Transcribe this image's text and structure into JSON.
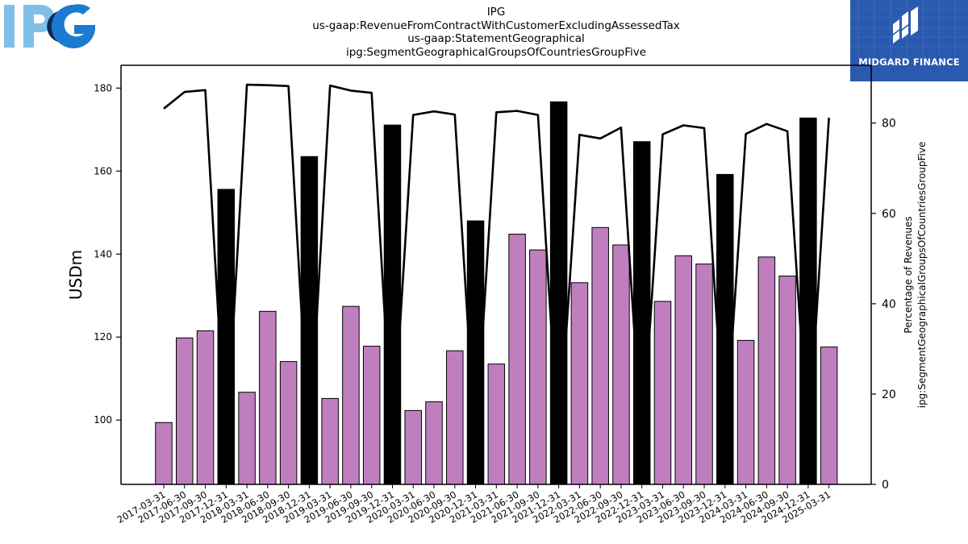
{
  "logos": {
    "left": {
      "name": "IPG",
      "colors": {
        "light": "#7fbfea",
        "dark": "#1a7bd0",
        "navy": "#0b2a55"
      }
    },
    "right": {
      "brand": "MIDGARD FINANCE",
      "background": "#2a5ab0"
    }
  },
  "header": {
    "title": "IPG",
    "line2": "us-gaap:RevenueFromContractWithCustomerExcludingAssessedTax",
    "line3": "us-gaap:StatementGeographical",
    "line4": "ipg:SegmentGeographicalGroupsOfCountriesGroupFive"
  },
  "colors": {
    "quarter_bar": "#bf7fbf",
    "year_end_bar": "#000000",
    "line": "#000000"
  },
  "chart_data": {
    "type": "bar",
    "xlabel": "",
    "ylabel": "USDm",
    "y2label_line1": "Percentage of Revenues",
    "y2label_line2": "ipg:SegmentGeographicalGroupsOfCountriesGroupFive",
    "ylim": [
      84.5,
      185.5
    ],
    "y2lim": [
      0,
      92.8
    ],
    "yticks": [
      100,
      120,
      140,
      160,
      180
    ],
    "y2ticks": [
      0,
      20,
      40,
      60,
      80
    ],
    "grid": false,
    "categories": [
      "2017-03-31",
      "2017-06-30",
      "2017-09-30",
      "2017-12-31",
      "2018-03-31",
      "2018-06-30",
      "2018-09-30",
      "2018-12-31",
      "2019-03-31",
      "2019-06-30",
      "2019-09-30",
      "2019-12-31",
      "2020-03-31",
      "2020-06-30",
      "2020-09-30",
      "2020-12-31",
      "2021-03-31",
      "2021-06-30",
      "2021-09-30",
      "2021-12-31",
      "2022-03-31",
      "2022-06-30",
      "2022-09-30",
      "2022-12-31",
      "2023-03-31",
      "2023-06-30",
      "2023-09-30",
      "2023-12-31",
      "2024-03-31",
      "2024-06-30",
      "2024-09-30",
      "2024-12-31",
      "2025-03-31"
    ],
    "series": [
      {
        "values": [
          99.4,
          119.8,
          121.5,
          155.6,
          106.7,
          126.2,
          114.1,
          163.5,
          105.2,
          127.4,
          117.8,
          171.1,
          102.3,
          104.4,
          116.7,
          148.0,
          113.5,
          144.8,
          141.0,
          176.7,
          133.1,
          146.4,
          142.2,
          167.1,
          128.6,
          139.6,
          137.6,
          159.2,
          119.2,
          139.3,
          134.7,
          172.8,
          117.6
        ]
      },
      {
        "type": "line",
        "axis": "right",
        "values": [
          83.2,
          86.9,
          87.3,
          7.2,
          88.5,
          88.4,
          88.2,
          8.0,
          88.3,
          87.2,
          86.7,
          8.1,
          81.8,
          82.6,
          81.9,
          8.0,
          82.4,
          82.7,
          81.8,
          8.4,
          77.4,
          76.6,
          79.0,
          8.0,
          77.5,
          79.5,
          78.9,
          8.2,
          77.6,
          79.8,
          78.2,
          8.3,
          81.2
        ]
      }
    ]
  }
}
